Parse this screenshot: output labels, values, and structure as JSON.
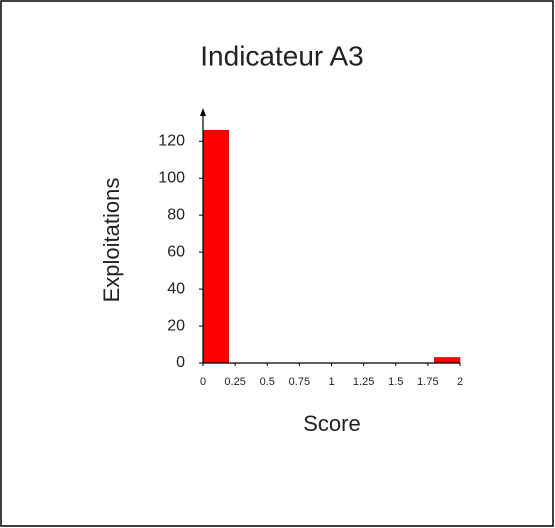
{
  "chart_data": {
    "type": "histogram",
    "title": "Indicateur A3",
    "xlabel": "Score",
    "ylabel": "Exploitations",
    "bins": [
      0,
      0.2,
      0.4,
      0.6,
      0.8,
      1,
      1.2,
      1.4,
      1.6,
      1.8,
      2
    ],
    "values": [
      126,
      0,
      0,
      0,
      0,
      0,
      0,
      0,
      0,
      3
    ],
    "color": "#ff0000",
    "xlim": [
      0,
      2
    ],
    "xticks": [
      0,
      0.25,
      0.5,
      0.75,
      1,
      1.25,
      1.5,
      1.75,
      2
    ],
    "ylim": [
      0,
      138
    ],
    "yticks": [
      0,
      20,
      40,
      60,
      80,
      100,
      120
    ]
  }
}
